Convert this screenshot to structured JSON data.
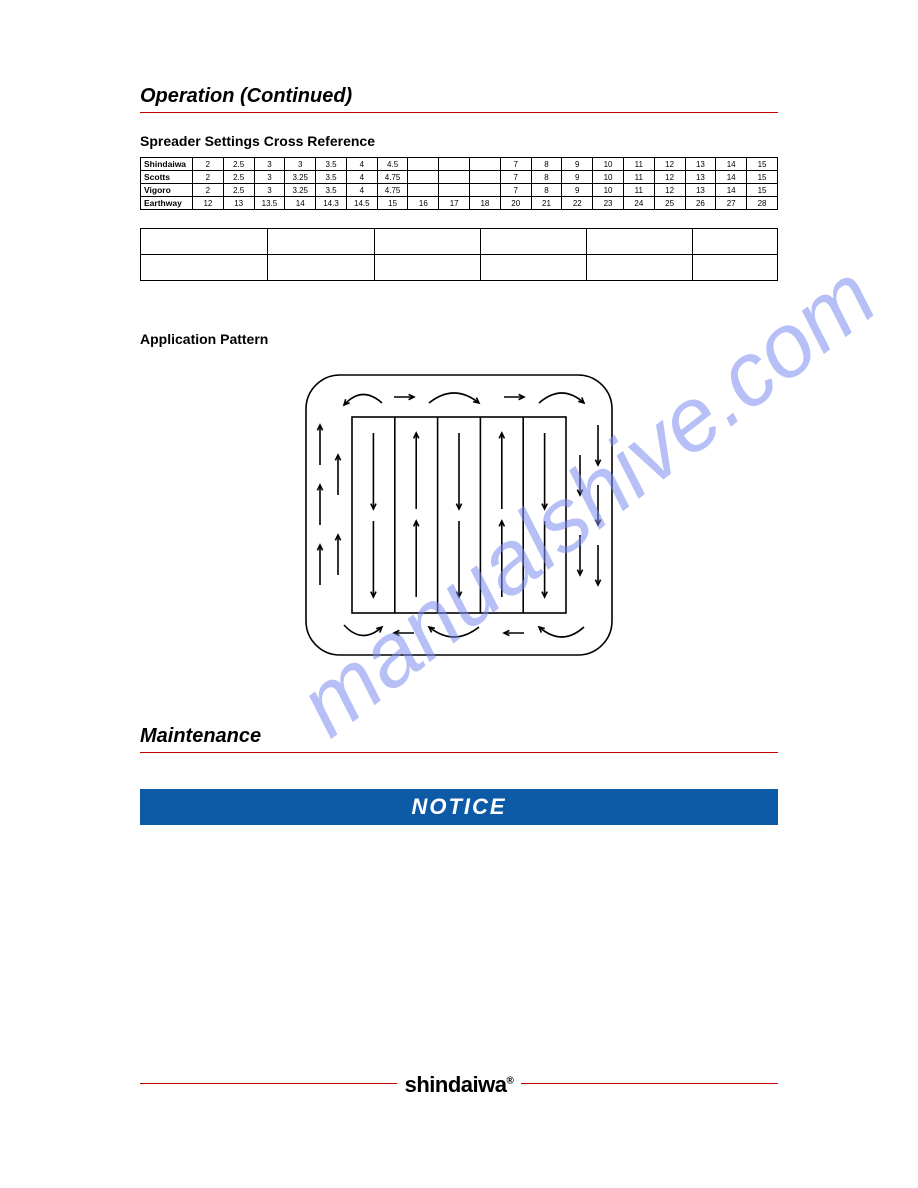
{
  "section_heading": "Operation (Continued)",
  "cross_ref_title": "Spreader Settings Cross Reference",
  "table1": {
    "rows": [
      {
        "brand": "Shindaiwa",
        "cells": [
          "2",
          "2.5",
          "3",
          "3",
          "3.5",
          "4",
          "4.5",
          "",
          "",
          "",
          "7",
          "8",
          "9",
          "10",
          "11",
          "12",
          "13",
          "14",
          "15"
        ]
      },
      {
        "brand": "Scotts",
        "cells": [
          "2",
          "2.5",
          "3",
          "3.25",
          "3.5",
          "4",
          "4.75",
          "",
          "",
          "",
          "7",
          "8",
          "9",
          "10",
          "11",
          "12",
          "13",
          "14",
          "15"
        ]
      },
      {
        "brand": "Vigoro",
        "cells": [
          "2",
          "2.5",
          "3",
          "3.25",
          "3.5",
          "4",
          "4.75",
          "",
          "",
          "",
          "7",
          "8",
          "9",
          "10",
          "11",
          "12",
          "13",
          "14",
          "15"
        ]
      },
      {
        "brand": "Earthway",
        "cells": [
          "12",
          "13",
          "13.5",
          "14",
          "14.3",
          "14.5",
          "15",
          "16",
          "17",
          "18",
          "20",
          "21",
          "22",
          "23",
          "24",
          "25",
          "26",
          "27",
          "28"
        ]
      }
    ]
  },
  "application_title": "Application Pattern",
  "maintenance_heading": "Maintenance",
  "notice_label": "NOTICE",
  "logo": "shindaiwa",
  "logo_reg": "®",
  "watermark_text": "manualshive.com",
  "diagram": {
    "outer_radius": 36,
    "outer_size": 320,
    "inner_cols": 5,
    "stroke": "#000000",
    "stroke_width": 1.6
  },
  "colors": {
    "rule": "#c00000",
    "notice_bg": "#0d5aa7",
    "notice_fg": "#ffffff",
    "watermark": "#7a8cf0"
  }
}
